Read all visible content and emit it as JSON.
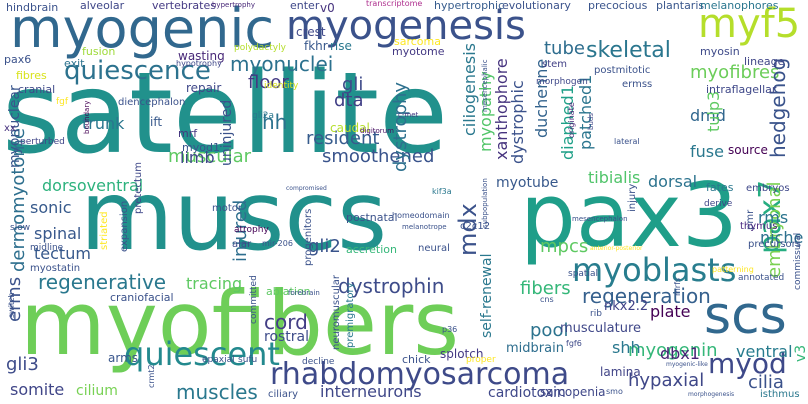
{
  "title": "Word cloud",
  "words": [
    {
      "text": "satellite",
      "color": "#21918c"
    },
    {
      "text": "muscs",
      "color": "#21918c"
    },
    {
      "text": "myofibers",
      "color": "#6ece58"
    },
    {
      "text": "pax3",
      "color": "#1f9e89"
    },
    {
      "text": "myogenic",
      "color": "#31688e"
    },
    {
      "text": "myogenesis",
      "color": "#3b528b"
    },
    {
      "text": "myf5",
      "color": "#b5de2b"
    },
    {
      "text": "scs",
      "color": "#31688e"
    },
    {
      "text": "rhabdomyosarcoma",
      "color": "#3e4a89"
    },
    {
      "text": "myoblasts",
      "color": "#287d8e"
    },
    {
      "text": "quiescent",
      "color": "#23898e"
    },
    {
      "text": "pax7",
      "color": "#26ad81"
    },
    {
      "text": "quiescence",
      "color": "#2c728e"
    },
    {
      "text": "myod",
      "color": "#3e4989"
    },
    {
      "text": "myonuclei",
      "color": "#2c718e"
    },
    {
      "text": "regeneration",
      "color": "#35608d"
    },
    {
      "text": "dystrophin",
      "color": "#3e4c8a"
    },
    {
      "text": "regenerative",
      "color": "#2a788e"
    },
    {
      "text": "embryonal",
      "color": "#7ad151"
    },
    {
      "text": "mdx",
      "color": "#3b528b"
    },
    {
      "text": "muscles",
      "color": "#2a788e"
    },
    {
      "text": "myofibres",
      "color": "#6ccd5a"
    },
    {
      "text": "skeletal",
      "color": "#2a768e"
    },
    {
      "text": "muscular",
      "color": "#5ec962"
    },
    {
      "text": "smoothened",
      "color": "#3a548c"
    },
    {
      "text": "myogenin",
      "color": "#35b779"
    },
    {
      "text": "hedgehog",
      "color": "#3a538b"
    },
    {
      "text": "dystrophy",
      "color": "#2d708e"
    },
    {
      "text": "cord",
      "color": "#433e85"
    },
    {
      "text": "pool",
      "color": "#2c738e"
    },
    {
      "text": "fibers",
      "color": "#35b779"
    },
    {
      "text": "dermomyotome",
      "color": "#2e6f8e"
    },
    {
      "text": "xanthophore",
      "color": "#46337e"
    },
    {
      "text": "dystrophic",
      "color": "#3b528b"
    },
    {
      "text": "ciliogenesis",
      "color": "#2a788e"
    },
    {
      "text": "duchenne",
      "color": "#33638d"
    },
    {
      "text": "myopathy",
      "color": "#52c569"
    },
    {
      "text": "injured",
      "color": "#2e6e8e"
    },
    {
      "text": "tracing",
      "color": "#5ec962"
    },
    {
      "text": "gli3",
      "color": "#3e4c8a"
    },
    {
      "text": "cilia",
      "color": "#3b528b"
    },
    {
      "text": "hypaxial",
      "color": "#3f4788"
    },
    {
      "text": "resident",
      "color": "#365c8d"
    },
    {
      "text": "hh",
      "color": "#2c728e"
    },
    {
      "text": "erms",
      "color": "#3b528b"
    },
    {
      "text": "shh",
      "color": "#2a788e"
    },
    {
      "text": "dbx1",
      "color": "#482475"
    },
    {
      "text": "ventral",
      "color": "#287c8e"
    },
    {
      "text": "rms",
      "color": "#2b748e"
    },
    {
      "text": "interneurons",
      "color": "#3f4788"
    },
    {
      "text": "gli2",
      "color": "#3a548c"
    },
    {
      "text": "mpcs",
      "color": "#5ec962"
    },
    {
      "text": "tibialis",
      "color": "#50c46a"
    },
    {
      "text": "dorsoventral",
      "color": "#2db27d"
    },
    {
      "text": "myotube",
      "color": "#38598c"
    },
    {
      "text": "fuse",
      "color": "#2a788e"
    },
    {
      "text": "spinal",
      "color": "#38588c"
    },
    {
      "text": "dmd",
      "color": "#31678e"
    },
    {
      "text": "tube",
      "color": "#2e6d8e"
    },
    {
      "text": "floor",
      "color": "#443983"
    },
    {
      "text": "gli",
      "color": "#3e4a89"
    },
    {
      "text": "dta",
      "color": "#424086"
    },
    {
      "text": "sonic",
      "color": "#375a8c"
    },
    {
      "text": "limb",
      "color": "#3f4889"
    },
    {
      "text": "self-renewal",
      "color": "#2a788e"
    },
    {
      "text": "somite",
      "color": "#404688"
    },
    {
      "text": "cilium",
      "color": "#77d153"
    },
    {
      "text": "cardiotoxin",
      "color": "#3f4889"
    },
    {
      "text": "myonuclear",
      "color": "#39568c"
    },
    {
      "text": "trunk",
      "color": "#2a768e"
    },
    {
      "text": "tectum",
      "color": "#37598c"
    },
    {
      "text": "diaphed1",
      "color": "#1fa088"
    },
    {
      "text": "patched1",
      "color": "#2b758e"
    },
    {
      "text": "tulp3",
      "color": "#5ec962"
    },
    {
      "text": "plate",
      "color": "#440154"
    },
    {
      "text": "niche",
      "color": "#2d708e"
    },
    {
      "text": "dorsal",
      "color": "#2c738e"
    },
    {
      "text": "rostral",
      "color": "#3e4c8a"
    },
    {
      "text": "v3",
      "color": "#35b779"
    },
    {
      "text": "uninjured",
      "color": "#3b528b"
    },
    {
      "text": "caudal",
      "color": "#b5de2b"
    },
    {
      "text": "nkx2.2",
      "color": "#414287"
    },
    {
      "text": "musculature",
      "color": "#3f4788"
    },
    {
      "text": "midbrain",
      "color": "#2e6e8e"
    },
    {
      "text": "lamina",
      "color": "#414487"
    },
    {
      "text": "splotch",
      "color": "#443983"
    },
    {
      "text": "arms",
      "color": "#39568c"
    },
    {
      "text": "sarcopenia",
      "color": "#3f4788"
    },
    {
      "text": "crest",
      "color": "#3f4889"
    },
    {
      "text": "fkhr",
      "color": "#38588c"
    },
    {
      "text": "rise",
      "color": "#2a788e"
    },
    {
      "text": "v0",
      "color": "#46337e"
    },
    {
      "text": "myotome",
      "color": "#443983"
    },
    {
      "text": "repair",
      "color": "#3f4889"
    },
    {
      "text": "wasting",
      "color": "#482878"
    },
    {
      "text": "fusion",
      "color": "#9fda3a"
    },
    {
      "text": "exit",
      "color": "#2c728e"
    },
    {
      "text": "pax6",
      "color": "#3b528b"
    },
    {
      "text": "cranial",
      "color": "#3e4989"
    },
    {
      "text": "fibres",
      "color": "#d8e219"
    },
    {
      "text": "alveolar",
      "color": "#3f4788"
    },
    {
      "text": "hindbrain",
      "color": "#3b528b"
    },
    {
      "text": "vertebrates",
      "color": "#443983"
    },
    {
      "text": "enter",
      "color": "#3f4889"
    },
    {
      "text": "hypertrophic",
      "color": "#365c8d"
    },
    {
      "text": "evolutionary",
      "color": "#3b528b"
    },
    {
      "text": "precocious",
      "color": "#3a548c"
    },
    {
      "text": "plantaris",
      "color": "#39568c"
    },
    {
      "text": "melanophores",
      "color": "#2a768e"
    },
    {
      "text": "transcriptome",
      "color": "#ae2f8e"
    },
    {
      "text": "hypertrophy",
      "color": "#482878"
    },
    {
      "text": "myosin",
      "color": "#3e4a89"
    },
    {
      "text": "lineage",
      "color": "#404688"
    },
    {
      "text": "postmitotic",
      "color": "#3b528b"
    },
    {
      "text": "stem",
      "color": "#424086"
    },
    {
      "text": "intraflagellar",
      "color": "#3f4889"
    },
    {
      "text": "ermss",
      "color": "#3b528b"
    },
    {
      "text": "morphogen",
      "color": "#3f4889"
    },
    {
      "text": "polydactyly",
      "color": "#b5de2b"
    },
    {
      "text": "hypotrophy",
      "color": "#3f4889"
    },
    {
      "text": "identity",
      "color": "#d8e219"
    },
    {
      "text": "sarcoma",
      "color": "#fde725"
    },
    {
      "text": "ift",
      "color": "#38598c"
    },
    {
      "text": "mrf",
      "color": "#453781"
    },
    {
      "text": "myod1",
      "color": "#3a548c"
    },
    {
      "text": "gli2a",
      "color": "#2a788e"
    },
    {
      "text": "digitorum",
      "color": "#471063"
    },
    {
      "text": "diencephalon",
      "color": "#3b528b"
    },
    {
      "text": "perturbed",
      "color": "#404688"
    },
    {
      "text": "boundary",
      "color": "#440154"
    },
    {
      "text": "fgf",
      "color": "#fde725"
    },
    {
      "text": "xx",
      "color": "#46327e"
    },
    {
      "text": "c-met",
      "color": "#443983"
    },
    {
      "text": "mesencephalic",
      "color": "#3b528b"
    },
    {
      "text": "originate",
      "color": "#482878"
    },
    {
      "text": "buds",
      "color": "#404688"
    },
    {
      "text": "lateral",
      "color": "#3b528b"
    },
    {
      "text": "source",
      "color": "#440154"
    },
    {
      "text": "fates",
      "color": "#2a788e"
    },
    {
      "text": "pmr",
      "color": "#3b528b"
    },
    {
      "text": "embryos",
      "color": "#3f4889"
    },
    {
      "text": "derive",
      "color": "#404688"
    },
    {
      "text": "thymus",
      "color": "#4a2a80"
    },
    {
      "text": "precursors",
      "color": "#3b528b"
    },
    {
      "text": "patterning",
      "color": "#fde725"
    },
    {
      "text": "annotated",
      "color": "#3b528b"
    },
    {
      "text": "mrfs",
      "color": "#3b528b"
    },
    {
      "text": "rib",
      "color": "#3b528b"
    },
    {
      "text": "fgf6",
      "color": "#3e4a89"
    },
    {
      "text": "commissural",
      "color": "#3b528b"
    },
    {
      "text": "isthmus",
      "color": "#2a788e"
    },
    {
      "text": "morphogenesis",
      "color": "#3b528b"
    },
    {
      "text": "slow",
      "color": "#3b528b"
    },
    {
      "text": "motor",
      "color": "#3b528b"
    },
    {
      "text": "pretectum",
      "color": "#3f4889"
    },
    {
      "text": "atrophy",
      "color": "#440154"
    },
    {
      "text": "alar",
      "color": "#3e4a89"
    },
    {
      "text": "mir-206",
      "color": "#3b528b"
    },
    {
      "text": "postnatal",
      "color": "#3b528b"
    },
    {
      "text": "homeodomain",
      "color": "#3b528b"
    },
    {
      "text": "c2c12",
      "color": "#3b528b"
    },
    {
      "text": "kif3a",
      "color": "#2a788e"
    },
    {
      "text": "compromised",
      "color": "#3b528b"
    },
    {
      "text": "neural",
      "color": "#3b528b"
    },
    {
      "text": "accretion",
      "color": "#35b779"
    },
    {
      "text": "melanotrope",
      "color": "#3b528b"
    },
    {
      "text": "subpopulation",
      "color": "#3b528b"
    },
    {
      "text": "mesencephalon",
      "color": "#3b528b"
    },
    {
      "text": "injury",
      "color": "#3b528b"
    },
    {
      "text": "anterior-posterior",
      "color": "#fde725"
    },
    {
      "text": "spatial",
      "color": "#3b528b"
    },
    {
      "text": "cns",
      "color": "#3b528b"
    },
    {
      "text": "myostatin",
      "color": "#3b528b"
    },
    {
      "text": "striated",
      "color": "#fde725"
    },
    {
      "text": "expansion",
      "color": "#3b528b"
    },
    {
      "text": "midline",
      "color": "#3b528b"
    },
    {
      "text": "craniofacial",
      "color": "#3b528b"
    },
    {
      "text": "ablation",
      "color": "#5ec962"
    },
    {
      "text": "progenitors",
      "color": "#3b528b"
    },
    {
      "text": "neuromuscular",
      "color": "#3b528b"
    },
    {
      "text": "premigratory",
      "color": "#2a788e"
    },
    {
      "text": "forebrain",
      "color": "#3b528b"
    },
    {
      "text": "committed",
      "color": "#3b528b"
    },
    {
      "text": "epaxial",
      "color": "#3b528b"
    },
    {
      "text": "sufu",
      "color": "#3b528b"
    },
    {
      "text": "ciliary",
      "color": "#3b528b"
    },
    {
      "text": "decline",
      "color": "#3b528b"
    },
    {
      "text": "crmt2",
      "color": "#3b528b"
    },
    {
      "text": "p36",
      "color": "#3b528b"
    },
    {
      "text": "proper",
      "color": "#fde725"
    },
    {
      "text": "chick",
      "color": "#3b528b"
    },
    {
      "text": "switch",
      "color": "#3b528b"
    },
    {
      "text": "smo",
      "color": "#3b528b"
    },
    {
      "text": "myogenic-like",
      "color": "#3b528b"
    }
  ]
}
